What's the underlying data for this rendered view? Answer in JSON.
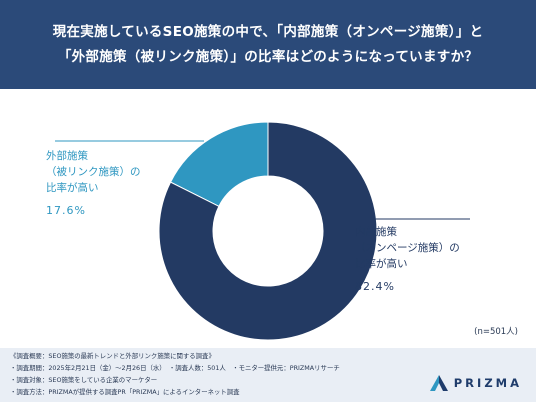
{
  "title": {
    "line1": "現在実施しているSEO施策の中で、「内部施策（オンページ施策）」と",
    "line2": "「外部施策（被リンク施策）」の比率はどのようになっていますか？"
  },
  "chart_data": {
    "type": "pie",
    "donut": true,
    "slices": [
      {
        "label_lines": [
          "外部施策",
          "（被リンク施策）の",
          "比率が高い"
        ],
        "value": 17.6,
        "value_label": "17.6%",
        "color": "#2f97c1"
      },
      {
        "label_lines": [
          "内部施策",
          "（オンページ施策）の",
          "比率が高い"
        ],
        "value": 82.4,
        "value_label": "82.4%",
        "color": "#233a63"
      }
    ],
    "note": "(n=501人)"
  },
  "footer": {
    "lines": [
      "《調査概要：SEO施策の最新トレンドと外部リンク施策に関する調査》",
      "・調査期間：2025年2月21日（金）〜2月26日（水）　・調査人数：501人　・モニター提供元：PRIZMAリサーチ",
      "・調査対象：SEO施策をしている企業のマーケター",
      "・調査方法：PRIZMAが提供する調査PR「PRIZMA」によるインターネット調査"
    ]
  },
  "logo": {
    "text": "PRIZMA",
    "colors": [
      "#2f97c1",
      "#1f3c6b"
    ]
  }
}
